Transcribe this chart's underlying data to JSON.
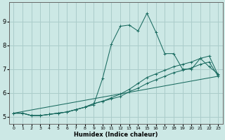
{
  "xlabel": "Humidex (Indice chaleur)",
  "background_color": "#cce8e5",
  "grid_color": "#aaccca",
  "line_color": "#1a6b60",
  "xlim": [
    -0.5,
    23.5
  ],
  "ylim": [
    4.7,
    9.8
  ],
  "yticks": [
    5,
    6,
    7,
    8,
    9
  ],
  "xticks": [
    0,
    1,
    2,
    3,
    4,
    5,
    6,
    7,
    8,
    9,
    10,
    11,
    12,
    13,
    14,
    15,
    16,
    17,
    18,
    19,
    20,
    21,
    22,
    23
  ],
  "line1_x": [
    0,
    1,
    2,
    3,
    4,
    5,
    6,
    7,
    8,
    9,
    10,
    11,
    12,
    13,
    14,
    15,
    16,
    17,
    18,
    19,
    20,
    21,
    22,
    23
  ],
  "line1_y": [
    5.15,
    5.15,
    5.05,
    5.05,
    5.1,
    5.15,
    5.2,
    5.3,
    5.4,
    5.5,
    6.6,
    8.05,
    8.8,
    8.85,
    8.6,
    9.35,
    8.55,
    7.65,
    7.65,
    7.0,
    7.0,
    7.45,
    7.1,
    6.8
  ],
  "line2_x": [
    0,
    1,
    2,
    3,
    4,
    5,
    6,
    7,
    8,
    9,
    10,
    11,
    12,
    13,
    14,
    15,
    16,
    17,
    18,
    19,
    20,
    21,
    22,
    23
  ],
  "line2_y": [
    5.15,
    5.15,
    5.05,
    5.05,
    5.1,
    5.15,
    5.2,
    5.3,
    5.4,
    5.55,
    5.65,
    5.8,
    5.95,
    6.15,
    6.4,
    6.65,
    6.8,
    6.95,
    7.1,
    7.2,
    7.3,
    7.45,
    7.55,
    6.75
  ],
  "line3_x": [
    0,
    1,
    2,
    3,
    4,
    5,
    6,
    7,
    8,
    9,
    10,
    11,
    12,
    13,
    14,
    15,
    16,
    17,
    18,
    19,
    20,
    21,
    22,
    23
  ],
  "line3_y": [
    5.15,
    5.15,
    5.05,
    5.05,
    5.1,
    5.15,
    5.2,
    5.3,
    5.4,
    5.55,
    5.65,
    5.75,
    5.85,
    6.05,
    6.2,
    6.4,
    6.55,
    6.7,
    6.85,
    6.95,
    7.05,
    7.2,
    7.3,
    6.7
  ],
  "line4_x": [
    0,
    23
  ],
  "line4_y": [
    5.15,
    6.7
  ]
}
